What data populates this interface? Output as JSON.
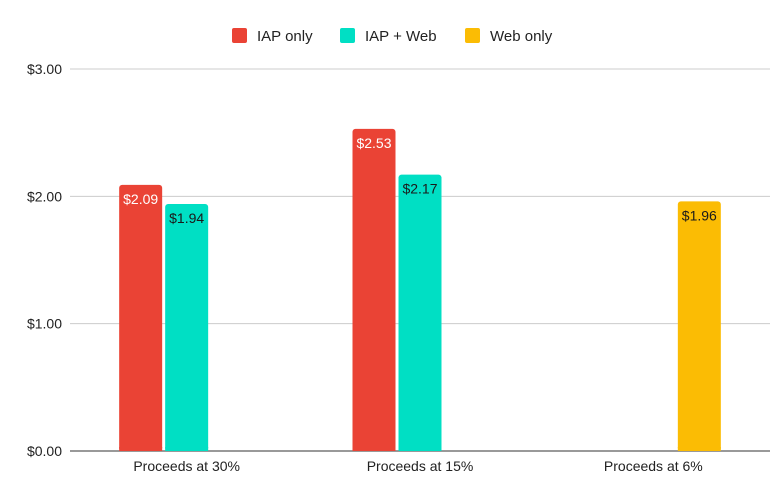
{
  "chart_data": {
    "type": "bar",
    "title": "",
    "xlabel": "",
    "ylabel": "",
    "categories": [
      "Proceeds at 30%",
      "Proceeds at 15%",
      "Proceeds at 6%"
    ],
    "series": [
      {
        "name": "IAP only",
        "color": "#ea4335",
        "values": [
          2.09,
          2.53,
          null
        ],
        "labels": [
          "$2.09",
          "$2.53",
          ""
        ],
        "label_color": "#ffffff"
      },
      {
        "name": "IAP + Web",
        "color": "#00dfc4",
        "values": [
          1.94,
          2.17,
          null
        ],
        "labels": [
          "$1.94",
          "$2.17",
          ""
        ],
        "label_color": "#1a1a1a"
      },
      {
        "name": "Web only",
        "color": "#fbbc04",
        "values": [
          null,
          null,
          1.96
        ],
        "labels": [
          "",
          "",
          "$1.96"
        ],
        "label_color": "#1a1a1a"
      }
    ],
    "ylim": [
      0,
      3
    ],
    "yticks": [
      0,
      1,
      2,
      3
    ],
    "ytick_labels": [
      "$0.00",
      "$1.00",
      "$2.00",
      "$3.00"
    ],
    "grid": true,
    "legend": "top-center"
  }
}
